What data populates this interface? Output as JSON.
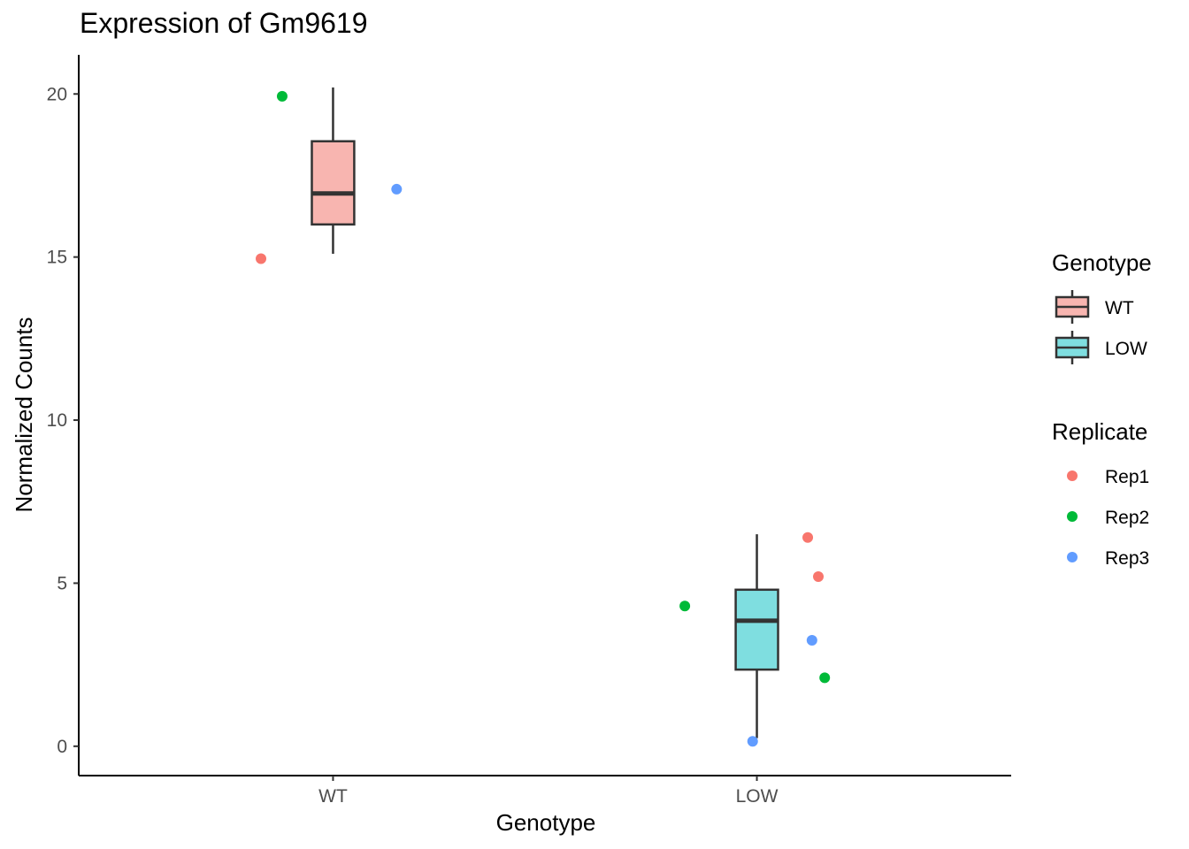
{
  "chart_data": {
    "type": "boxplot",
    "title": "Expression of Gm9619",
    "xlabel": "Genotype",
    "ylabel": "Normalized Counts",
    "categories": [
      "WT",
      "LOW"
    ],
    "ylim": [
      -0.9,
      21.2
    ],
    "yticks": [
      0,
      5,
      10,
      15,
      20
    ],
    "grid": false,
    "boxes": [
      {
        "category": "WT",
        "min": 15.1,
        "q1": 16.0,
        "median": 16.95,
        "q3": 18.55,
        "max": 20.2,
        "fill": "#F8B5B0"
      },
      {
        "category": "LOW",
        "min": 0.25,
        "q1": 2.35,
        "median": 3.85,
        "q3": 4.8,
        "max": 6.5,
        "fill": "#7FDEE0"
      }
    ],
    "points": [
      {
        "category": "WT",
        "jitter": -0.17,
        "y": 14.95,
        "replicate": "Rep1"
      },
      {
        "category": "WT",
        "jitter": -0.12,
        "y": 19.93,
        "replicate": "Rep2"
      },
      {
        "category": "WT",
        "jitter": 0.15,
        "y": 17.08,
        "replicate": "Rep3"
      },
      {
        "category": "LOW",
        "jitter": 0.12,
        "y": 6.4,
        "replicate": "Rep1"
      },
      {
        "category": "LOW",
        "jitter": 0.145,
        "y": 5.2,
        "replicate": "Rep1"
      },
      {
        "category": "LOW",
        "jitter": -0.17,
        "y": 4.3,
        "replicate": "Rep2"
      },
      {
        "category": "LOW",
        "jitter": 0.13,
        "y": 3.25,
        "replicate": "Rep3"
      },
      {
        "category": "LOW",
        "jitter": 0.16,
        "y": 2.1,
        "replicate": "Rep2"
      },
      {
        "category": "LOW",
        "jitter": -0.01,
        "y": 0.15,
        "replicate": "Rep3"
      }
    ],
    "legends": [
      {
        "title": "Genotype",
        "kind": "box",
        "items": [
          {
            "label": "WT",
            "color": "#F8B5B0"
          },
          {
            "label": "LOW",
            "color": "#7FDEE0"
          }
        ]
      },
      {
        "title": "Replicate",
        "kind": "point",
        "items": [
          {
            "label": "Rep1",
            "color": "#F8766D"
          },
          {
            "label": "Rep2",
            "color": "#00BA38"
          },
          {
            "label": "Rep3",
            "color": "#619CFF"
          }
        ]
      }
    ],
    "legend_position": "right",
    "colors": {
      "box_line": "#333333",
      "axis": "#000000"
    }
  }
}
